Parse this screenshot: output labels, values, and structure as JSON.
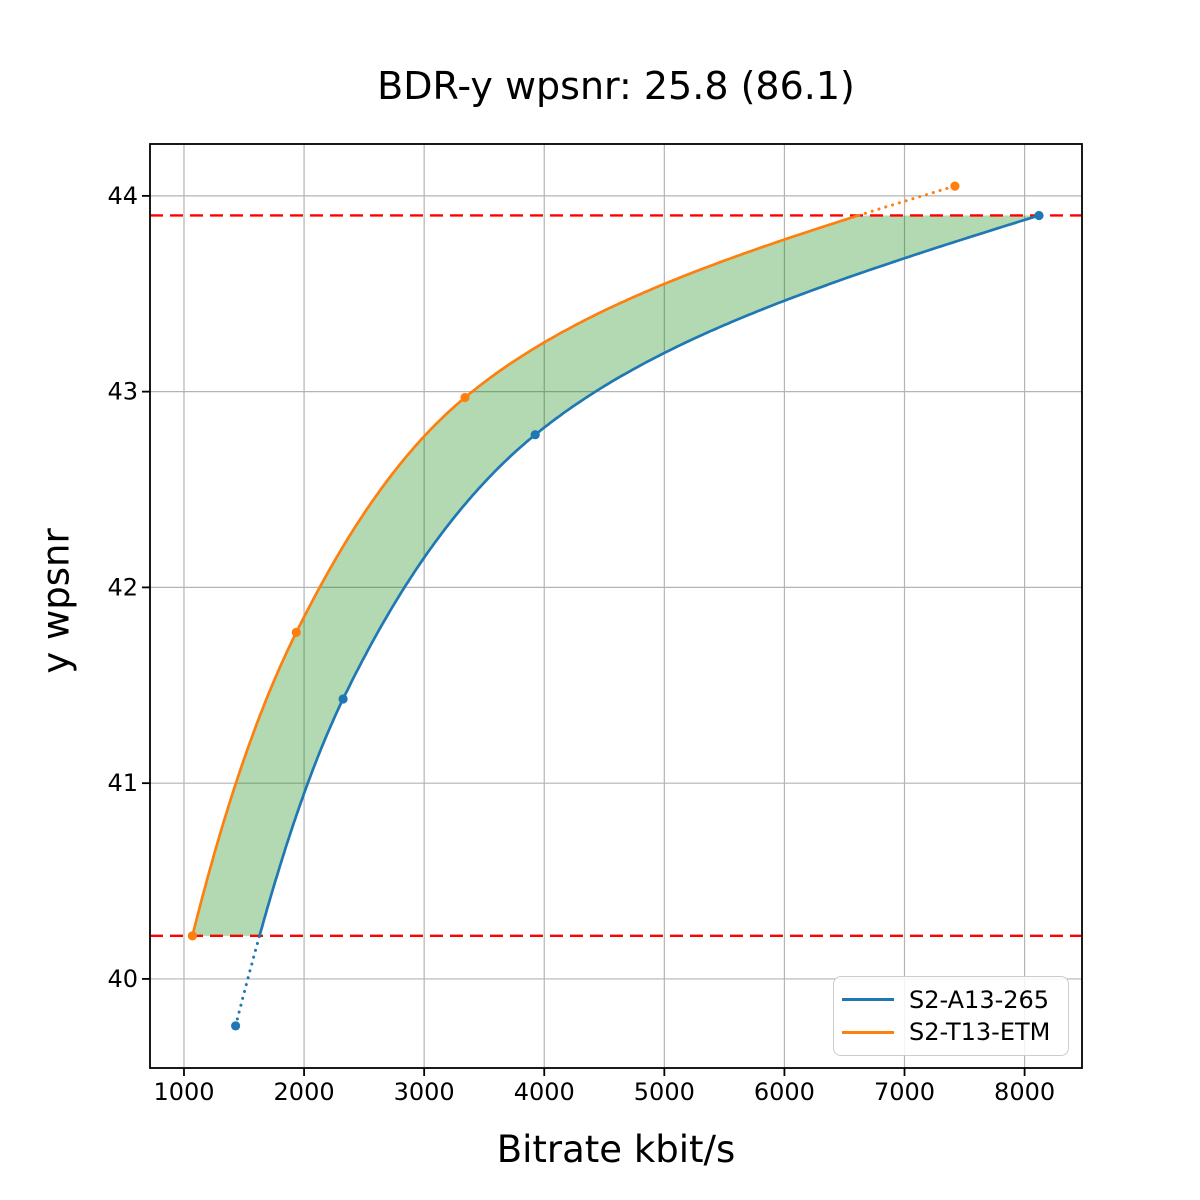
{
  "chart_data": {
    "type": "line",
    "title": "BDR-y wpsnr: 25.8 (86.1)",
    "xlabel": "Bitrate kbit/s",
    "ylabel": "y wpsnr",
    "xlim": [
      717,
      8478
    ],
    "ylim": [
      39.545,
      44.265
    ],
    "x_ticks": [
      1000,
      2000,
      3000,
      4000,
      5000,
      6000,
      7000,
      8000
    ],
    "y_ticks": [
      40,
      41,
      42,
      43,
      44
    ],
    "grid": true,
    "grid_color": "#b4b4b4",
    "legend": {
      "position": "lower right",
      "entries": [
        "S2-A13-265",
        "S2-T13-ETM"
      ]
    },
    "series": [
      {
        "name": "S2-A13-265",
        "color": "#1f77b4",
        "points": [
          [
            1430,
            39.76
          ],
          [
            2325,
            41.43
          ],
          [
            3925,
            42.78
          ],
          [
            8120,
            43.9
          ]
        ],
        "dotted": "below-overlap"
      },
      {
        "name": "S2-T13-ETM",
        "color": "#ff7f0e",
        "points": [
          [
            1070,
            40.22
          ],
          [
            1935,
            41.77
          ],
          [
            3340,
            42.97
          ],
          [
            7420,
            44.05
          ]
        ],
        "dotted": "above-overlap"
      }
    ],
    "overlap_lines": {
      "color": "#ff0000",
      "style": "dashed",
      "y_low": 40.22,
      "y_high": 43.9
    },
    "fill_between": {
      "color": "#008000",
      "opacity": 0.3
    }
  }
}
